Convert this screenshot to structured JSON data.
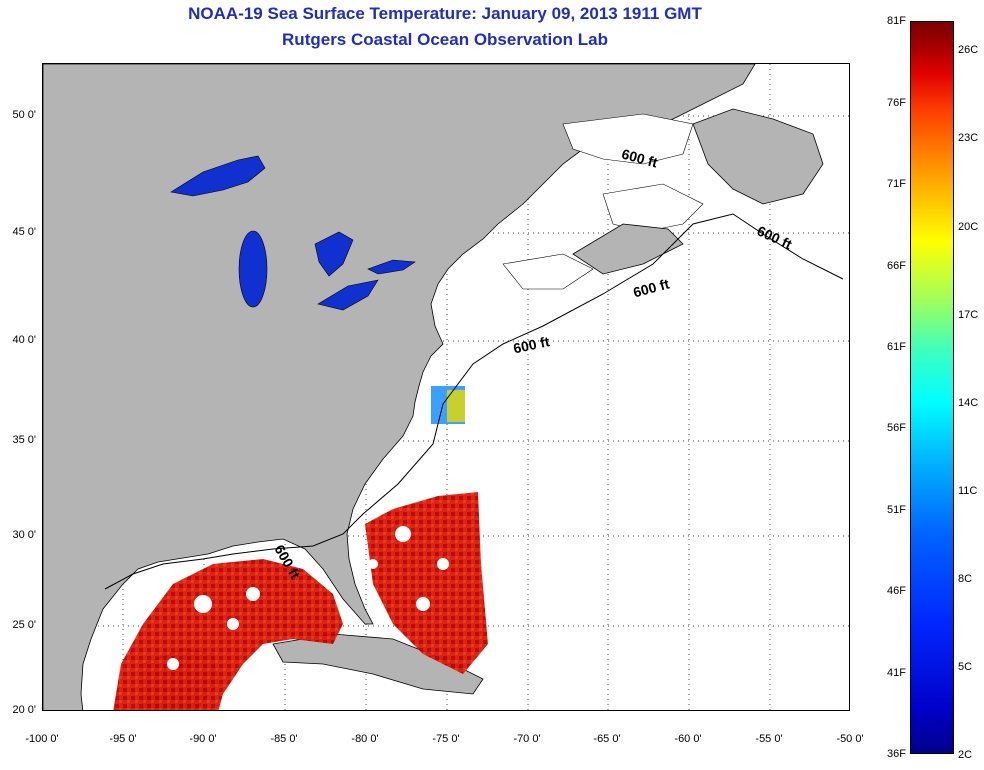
{
  "title": {
    "line1": "NOAA-19 Sea Surface Temperature:  January 09, 2013 1911 GMT",
    "line2": "Rutgers Coastal Ocean Observation Lab"
  },
  "map": {
    "region": "US East Coast & Gulf of Mexico",
    "land_color": "#b4b4b4",
    "ocean_color": "#ffffff",
    "lake_color": "#1030d0",
    "lon_range": [
      -100,
      -50
    ],
    "lat_range": [
      20,
      52
    ],
    "isobath_label": "600 ft"
  },
  "axes": {
    "lat_ticks": [
      "50 0'",
      "45 0'",
      "40 0'",
      "35 0'",
      "30 0'",
      "25 0'",
      "20 0'"
    ],
    "lon_ticks": [
      "-100 0'",
      "-95 0'",
      "-90 0'",
      "-85 0'",
      "-80 0'",
      "-75 0'",
      "-70 0'",
      "-65 0'",
      "-60 0'",
      "-55 0'",
      "-50 0'"
    ]
  },
  "colorbar": {
    "fahrenheit": [
      "81F",
      "76F",
      "71F",
      "66F",
      "61F",
      "56F",
      "51F",
      "46F",
      "41F",
      "36F"
    ],
    "celsius": [
      "26C",
      "23C",
      "20C",
      "17C",
      "14C",
      "11C",
      "8C",
      "5C",
      "2C"
    ]
  }
}
